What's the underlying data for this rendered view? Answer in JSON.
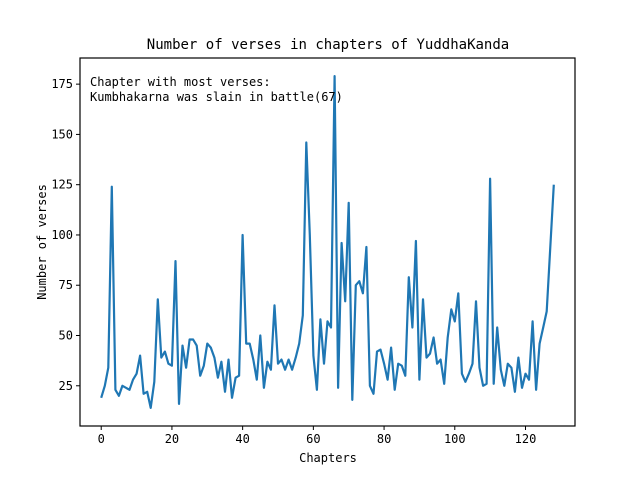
{
  "chart_data": {
    "type": "line",
    "title": "Number of verses in chapters of YuddhaKanda",
    "xlabel": "Chapters",
    "ylabel": "Number of verses",
    "xlim": [
      -6,
      134
    ],
    "ylim": [
      5,
      188
    ],
    "xticks": [
      0,
      20,
      40,
      60,
      80,
      100,
      120
    ],
    "yticks": [
      25,
      50,
      75,
      100,
      125,
      150,
      175
    ],
    "grid": false,
    "annotation": {
      "lines": [
        "Chapter with most verses:",
        "Kumbhakarna was slain in battle(67)"
      ],
      "placement": "top-left"
    },
    "series": [
      {
        "color": "#1f77b4",
        "x": [
          0,
          1,
          2,
          3,
          4,
          5,
          6,
          7,
          8,
          9,
          10,
          11,
          12,
          13,
          14,
          15,
          16,
          17,
          18,
          19,
          20,
          21,
          22,
          23,
          24,
          25,
          26,
          27,
          28,
          29,
          30,
          31,
          32,
          33,
          34,
          35,
          36,
          37,
          38,
          39,
          40,
          41,
          42,
          43,
          44,
          45,
          46,
          47,
          48,
          49,
          50,
          51,
          52,
          53,
          54,
          55,
          56,
          57,
          58,
          59,
          60,
          61,
          62,
          63,
          64,
          65,
          66,
          67,
          68,
          69,
          70,
          71,
          72,
          73,
          74,
          75,
          76,
          77,
          78,
          79,
          80,
          81,
          82,
          83,
          84,
          85,
          86,
          87,
          88,
          89,
          90,
          91,
          92,
          93,
          94,
          95,
          96,
          97,
          98,
          99,
          100,
          101,
          102,
          103,
          104,
          105,
          106,
          107,
          108,
          109,
          110,
          111,
          112,
          113,
          114,
          115,
          116,
          117,
          118,
          119,
          120,
          121,
          122,
          123,
          124,
          125,
          126,
          127,
          128
        ],
        "values": [
          19,
          25,
          34,
          124,
          23,
          20,
          25,
          24,
          23,
          28,
          31,
          40,
          21,
          22,
          14,
          27,
          68,
          39,
          42,
          36,
          35,
          87,
          16,
          45,
          34,
          48,
          48,
          45,
          30,
          35,
          46,
          44,
          39,
          29,
          37,
          22,
          38,
          19,
          29,
          30,
          100,
          46,
          46,
          38,
          28,
          50,
          24,
          37,
          33,
          65,
          36,
          38,
          33,
          38,
          33,
          39,
          46,
          60,
          146,
          100,
          40,
          23,
          58,
          36,
          57,
          54,
          179,
          24,
          96,
          67,
          116,
          18,
          75,
          77,
          71,
          94,
          25,
          21,
          42,
          43,
          36,
          28,
          44,
          23,
          36,
          35,
          30,
          79,
          54,
          97,
          28,
          68,
          39,
          41,
          49,
          36,
          38,
          26,
          49,
          63,
          57,
          71,
          31,
          27,
          31,
          36,
          67,
          34,
          25,
          26,
          128,
          26,
          54,
          33,
          25,
          36,
          34,
          22,
          39,
          24,
          31,
          28,
          57,
          23,
          46,
          54,
          62,
          94,
          125
        ]
      }
    ]
  }
}
